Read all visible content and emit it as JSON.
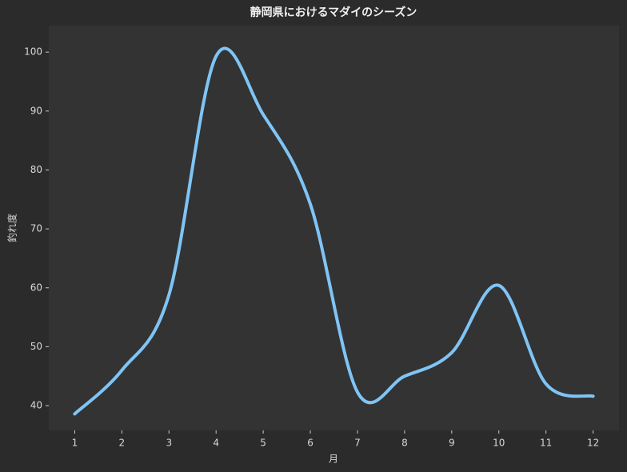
{
  "chart_data": {
    "type": "line",
    "title": "静岡県におけるマダイのシーズン",
    "x_label": "月",
    "y_label": "釣れ度",
    "x": [
      1,
      2,
      3,
      4,
      5,
      6,
      7,
      8,
      9,
      10,
      11,
      12
    ],
    "series": [
      {
        "name": "釣れ度",
        "color": "#7fc4f5",
        "values": [
          38.6,
          46,
          58.8,
          99.3,
          89.4,
          74.2,
          42.3,
          45,
          49,
          60.4,
          43.7,
          41.6
        ]
      }
    ],
    "xlim": [
      0.45,
      12.55
    ],
    "xticks": [
      1,
      2,
      3,
      4,
      5,
      6,
      7,
      8,
      9,
      10,
      11,
      12
    ],
    "ylim": [
      35.8,
      104.5
    ],
    "yticks": [
      40,
      50,
      60,
      70,
      80,
      90,
      100
    ],
    "grid": false
  }
}
